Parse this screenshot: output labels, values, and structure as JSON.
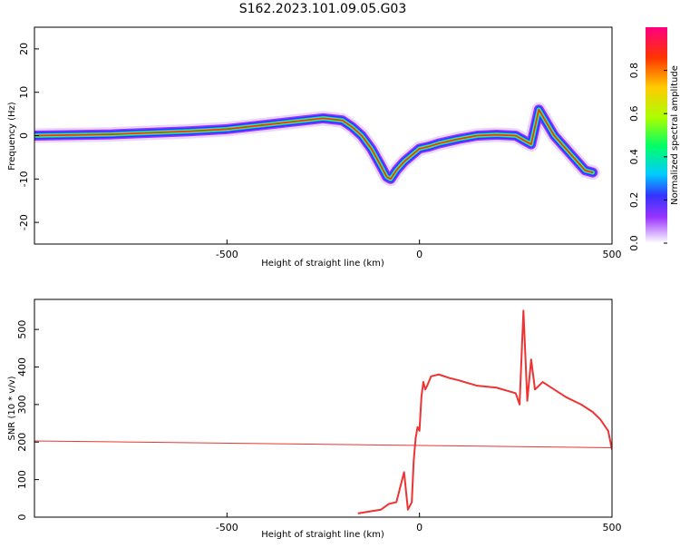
{
  "title": "S162.2023.101.09.05.G03",
  "chart_data": [
    {
      "type": "heatmap",
      "xlabel": "Height of straight line (km)",
      "ylabel": "Frequency (Hz)",
      "xlim": [
        -1000,
        500
      ],
      "ylim": [
        -25,
        25
      ],
      "xticks": [
        -500,
        0,
        500
      ],
      "yticks": [
        -20,
        -10,
        0,
        10,
        20
      ],
      "colorbar": {
        "label": "Normalized spectral amplitude",
        "range": [
          0,
          1
        ],
        "ticks": [
          0.0,
          0.2,
          0.4,
          0.6,
          0.8
        ]
      },
      "ridge": {
        "x": [
          -1000,
          -800,
          -600,
          -500,
          -400,
          -300,
          -250,
          -200,
          -175,
          -150,
          -125,
          -100,
          -85,
          -75,
          -60,
          -40,
          -20,
          0,
          25,
          50,
          100,
          150,
          200,
          250,
          270,
          290,
          310,
          330,
          350,
          370,
          390,
          410,
          430,
          450
        ],
        "y": [
          0,
          0.3,
          1,
          1.5,
          2.5,
          3.5,
          4,
          3.5,
          2,
          0,
          -3,
          -7,
          -9.5,
          -10,
          -8,
          -6,
          -4.5,
          -3,
          -2.5,
          -1.8,
          -0.8,
          0,
          0.2,
          0,
          -1,
          -2,
          6,
          3,
          0,
          -2,
          -4,
          -6,
          -8,
          -8.5
        ]
      }
    },
    {
      "type": "line",
      "xlabel": "Height of straight line (km)",
      "ylabel": "SNR (10 * v/v)",
      "xlim": [
        -1000,
        500
      ],
      "ylim": [
        0,
        580
      ],
      "xticks": [
        -500,
        0,
        500
      ],
      "yticks": [
        0,
        100,
        200,
        300,
        400,
        500
      ],
      "series": [
        {
          "color": "#ee3333",
          "x": [
            -160,
            -130,
            -100,
            -80,
            -60,
            -40,
            -30,
            -20,
            -15,
            -10,
            -5,
            0,
            5,
            10,
            15,
            20,
            30,
            50,
            80,
            100,
            150,
            200,
            250,
            260,
            270,
            280,
            290,
            300,
            320,
            350,
            380,
            400,
            420,
            450,
            470,
            490,
            500
          ],
          "y": [
            10,
            15,
            20,
            35,
            40,
            120,
            20,
            40,
            150,
            210,
            240,
            230,
            320,
            360,
            340,
            350,
            375,
            380,
            370,
            365,
            350,
            345,
            330,
            300,
            550,
            310,
            420,
            340,
            360,
            340,
            320,
            310,
            300,
            280,
            260,
            230,
            180
          ]
        },
        {
          "color": "#ee3333",
          "x": [
            -1000,
            500
          ],
          "y": [
            203,
            185
          ]
        }
      ]
    }
  ]
}
